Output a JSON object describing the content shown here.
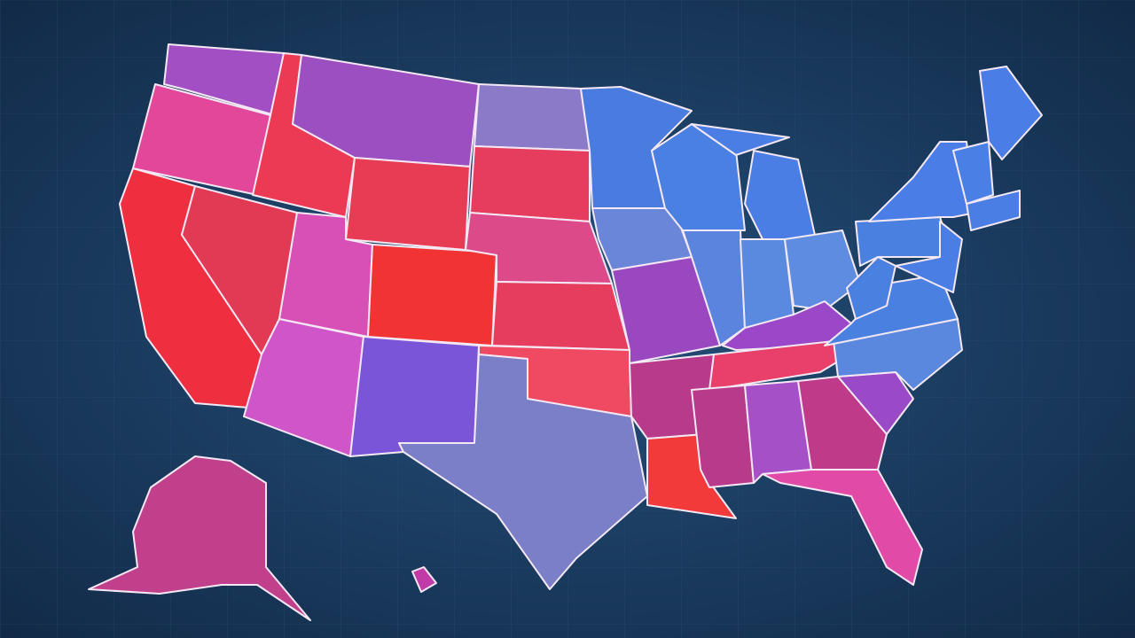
{
  "map": {
    "regions": [
      {
        "color": "#a24fc4"
      },
      {
        "color": "#e2479a"
      },
      {
        "color": "#ec3a55"
      },
      {
        "color": "#9b4fc0"
      },
      {
        "color": "#e83c55"
      },
      {
        "color": "#ef2f40"
      },
      {
        "color": "#e23a55"
      },
      {
        "color": "#d84fb5"
      },
      {
        "color": "#f23333"
      },
      {
        "color": "#d055c8"
      },
      {
        "color": "#7a55d8"
      },
      {
        "color": "#8a7ac8"
      },
      {
        "color": "#e63c5e"
      },
      {
        "color": "#dc4a8a"
      },
      {
        "color": "#e63c5e"
      },
      {
        "color": "#f04a62"
      },
      {
        "color": "#7a7fc8"
      },
      {
        "color": "#4a7ce0"
      },
      {
        "color": "#6a86d8"
      },
      {
        "color": "#9a48c0"
      },
      {
        "color": "#b83a8a"
      },
      {
        "color": "#f23a3a"
      },
      {
        "color": "#4a80e2"
      },
      {
        "color": "#5a84de"
      },
      {
        "color": "#4a7ee4"
      },
      {
        "color": "#4a7ee4"
      },
      {
        "color": "#5a8ae0"
      },
      {
        "color": "#5e8ce0"
      },
      {
        "color": "#9a48c8"
      },
      {
        "color": "#e8406a"
      },
      {
        "color": "#b83a8a"
      },
      {
        "color": "#a650c8"
      },
      {
        "color": "#c03a8a"
      },
      {
        "color": "#e24aa8"
      },
      {
        "color": "#9a4ac6"
      },
      {
        "color": "#5a88de"
      },
      {
        "color": "#4a80e0"
      },
      {
        "color": "#4a80e0"
      },
      {
        "color": "#4a80e0"
      },
      {
        "color": "#4a7ee6"
      },
      {
        "color": "#4a7ee6"
      },
      {
        "color": "#4a80e6"
      },
      {
        "color": "#4a7ee4"
      },
      {
        "color": "#4a7ee4"
      },
      {
        "color": "#c0408c"
      },
      {
        "color": "#c03aa8"
      }
    ]
  }
}
